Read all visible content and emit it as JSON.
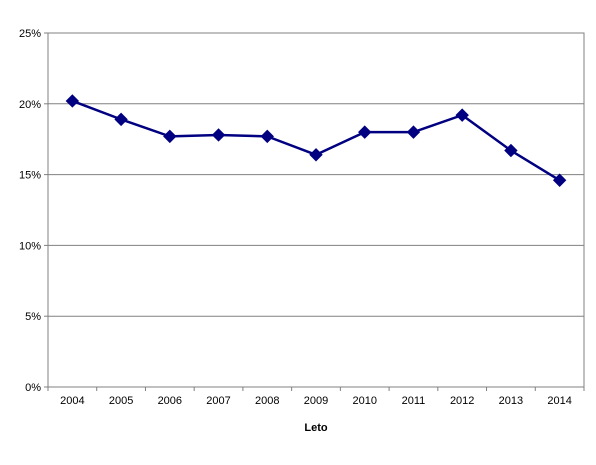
{
  "chart_data": {
    "type": "line",
    "title": "",
    "xlabel": "Leto",
    "ylabel": "",
    "categories": [
      "2004",
      "2005",
      "2006",
      "2007",
      "2008",
      "2009",
      "2010",
      "2011",
      "2012",
      "2013",
      "2014"
    ],
    "series": [
      {
        "values": [
          20.2,
          18.9,
          17.7,
          17.8,
          17.7,
          16.4,
          18.0,
          18.0,
          19.2,
          16.7,
          14.6
        ],
        "color": "#000080",
        "marker": "diamond"
      }
    ],
    "ylim": [
      0,
      25
    ],
    "y_ticks": [
      0,
      5,
      10,
      15,
      20,
      25
    ],
    "y_tick_labels": [
      "0%",
      "5%",
      "10%",
      "15%",
      "20%",
      "25%"
    ],
    "grid": true,
    "legend": "none"
  }
}
